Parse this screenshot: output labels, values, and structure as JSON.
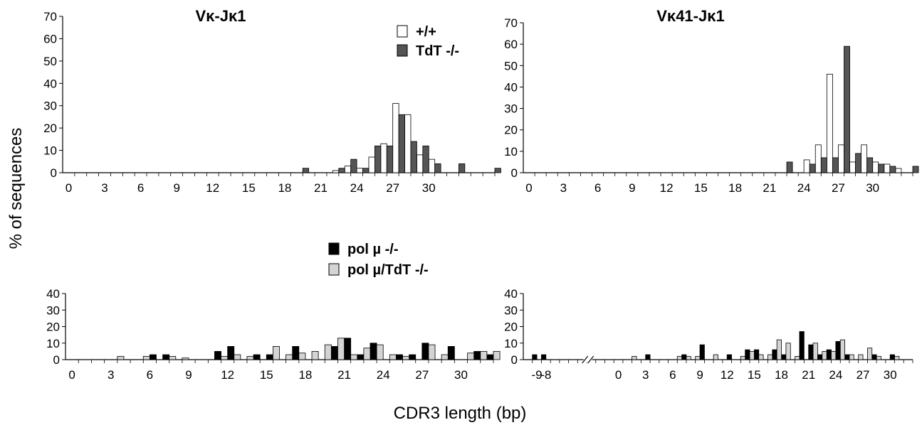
{
  "figure": {
    "ylabel": "% of sequences",
    "xlabel": "CDR3 length (bp)",
    "colors": {
      "wt": "#ffffff",
      "tdt": "#555555",
      "polmu": "#000000",
      "polmu_tdt": "#d4d4d4"
    }
  },
  "legends": {
    "top": [
      {
        "label": "+/+",
        "color": "#ffffff"
      },
      {
        "label": "TdT -/-",
        "color": "#555555"
      }
    ],
    "bottom": [
      {
        "label": "pol µ -/-",
        "color": "#000000"
      },
      {
        "label": "pol µ/TdT -/-",
        "color": "#d4d4d4"
      }
    ]
  },
  "chart_data": [
    {
      "id": "top-left",
      "type": "bar",
      "title": "Vκ-Jκ1",
      "xlabel": "",
      "ylabel": "",
      "xlim": [
        -0.5,
        35.5
      ],
      "ylim": [
        0,
        70
      ],
      "yticks": [
        0,
        10,
        20,
        30,
        40,
        50,
        60,
        70
      ],
      "xticks": [
        {
          "v": 0,
          "label": "0"
        },
        {
          "v": 3,
          "label": "3"
        },
        {
          "v": 6,
          "label": "6"
        },
        {
          "v": 9,
          "label": "9"
        },
        {
          "v": 12,
          "label": "12"
        },
        {
          "v": 15,
          "label": "15"
        },
        {
          "v": 18,
          "label": "18"
        },
        {
          "v": 21,
          "label": "21"
        },
        {
          "v": 24,
          "label": "24"
        },
        {
          "v": 27,
          "label": "27"
        },
        {
          "v": 30,
          "label": "30"
        }
      ],
      "series": [
        {
          "name": "+/+",
          "color": "#ffffff",
          "x": [
            22,
            23,
            24,
            25,
            26,
            27,
            28,
            29,
            30
          ],
          "y": [
            1,
            3,
            2,
            7,
            13,
            31,
            26,
            8,
            6
          ]
        },
        {
          "name": "TdT -/-",
          "color": "#555555",
          "x": [
            19,
            22,
            23,
            24,
            25,
            26,
            27,
            28,
            29,
            30,
            32,
            35
          ],
          "y": [
            2,
            2,
            6,
            2,
            12,
            12,
            26,
            14,
            12,
            4,
            4,
            2
          ]
        }
      ]
    },
    {
      "id": "top-right",
      "type": "bar",
      "title": "Vκ41-Jκ1",
      "xlabel": "",
      "ylabel": "",
      "xlim": [
        -0.5,
        33.5
      ],
      "ylim": [
        0,
        70
      ],
      "yticks": [
        0,
        10,
        20,
        30,
        40,
        50,
        60,
        70
      ],
      "xticks": [
        {
          "v": 0,
          "label": "0"
        },
        {
          "v": 3,
          "label": "3"
        },
        {
          "v": 6,
          "label": "6"
        },
        {
          "v": 9,
          "label": "9"
        },
        {
          "v": 12,
          "label": "12"
        },
        {
          "v": 15,
          "label": "15"
        },
        {
          "v": 18,
          "label": "18"
        },
        {
          "v": 21,
          "label": "21"
        },
        {
          "v": 24,
          "label": "24"
        },
        {
          "v": 27,
          "label": "27"
        },
        {
          "v": 30,
          "label": "30"
        }
      ],
      "series": [
        {
          "name": "+/+",
          "color": "#ffffff",
          "x": [
            24,
            25,
            26,
            27,
            28,
            29,
            30,
            31,
            32
          ],
          "y": [
            6,
            13,
            46,
            13,
            5,
            13,
            5,
            4,
            2
          ]
        },
        {
          "name": "TdT -/-",
          "color": "#555555",
          "x": [
            22,
            24,
            25,
            26,
            27,
            28,
            29,
            30,
            31,
            33
          ],
          "y": [
            5,
            4,
            7,
            7,
            59,
            9,
            7,
            4,
            3,
            3
          ]
        }
      ]
    },
    {
      "id": "bottom-left",
      "type": "bar",
      "title": "",
      "xlabel": "",
      "ylabel": "",
      "xlim": [
        -0.5,
        32.5
      ],
      "ylim": [
        0,
        40
      ],
      "yticks": [
        0,
        10,
        20,
        30,
        40
      ],
      "xticks": [
        {
          "v": 0,
          "label": "0"
        },
        {
          "v": 3,
          "label": "3"
        },
        {
          "v": 6,
          "label": "6"
        },
        {
          "v": 9,
          "label": "9"
        },
        {
          "v": 12,
          "label": "12"
        },
        {
          "v": 15,
          "label": "15"
        },
        {
          "v": 18,
          "label": "18"
        },
        {
          "v": 21,
          "label": "21"
        },
        {
          "v": 24,
          "label": "24"
        },
        {
          "v": 27,
          "label": "27"
        },
        {
          "v": 30,
          "label": "30"
        }
      ],
      "series": [
        {
          "name": "pol µ -/-",
          "color": "#000000",
          "x": [
            6,
            7,
            11,
            12,
            14,
            15,
            17,
            19,
            20,
            21,
            22,
            23,
            25,
            26,
            27,
            29,
            31,
            32
          ],
          "y": [
            3,
            3,
            5,
            8,
            3,
            3,
            8,
            0,
            8,
            13,
            3,
            10,
            3,
            3,
            10,
            8,
            5,
            3
          ]
        },
        {
          "name": "pol µ/TdT -/-",
          "color": "#d4d4d4",
          "x": [
            3,
            5,
            7,
            8,
            11,
            12,
            13,
            15,
            16,
            17,
            18,
            19,
            20,
            21,
            22,
            23,
            24,
            25,
            27,
            28,
            30,
            31,
            32
          ],
          "y": [
            2,
            2,
            2,
            1,
            2,
            3,
            2,
            8,
            3,
            4,
            5,
            9,
            13,
            3,
            7,
            9,
            3,
            2,
            9,
            3,
            4,
            5,
            5
          ]
        }
      ]
    },
    {
      "id": "bottom-right",
      "type": "bar",
      "title": "",
      "xlabel": "",
      "ylabel": "",
      "xlim": [
        -10.5,
        32.5
      ],
      "ylim": [
        0,
        40
      ],
      "yticks": [
        0,
        10,
        20,
        30,
        40
      ],
      "axis_break_between": [
        -8,
        0
      ],
      "xticks": [
        {
          "v": -9,
          "label": "-9"
        },
        {
          "v": -8,
          "label": "-8"
        },
        {
          "v": 0,
          "label": "0"
        },
        {
          "v": 3,
          "label": "3"
        },
        {
          "v": 6,
          "label": "6"
        },
        {
          "v": 9,
          "label": "9"
        },
        {
          "v": 12,
          "label": "12"
        },
        {
          "v": 15,
          "label": "15"
        },
        {
          "v": 18,
          "label": "18"
        },
        {
          "v": 21,
          "label": "21"
        },
        {
          "v": 24,
          "label": "24"
        },
        {
          "v": 27,
          "label": "27"
        },
        {
          "v": 30,
          "label": "30"
        }
      ],
      "series": [
        {
          "name": "pol µ -/-",
          "color": "#000000",
          "x": [
            -9.5,
            -8.5,
            3,
            7,
            9,
            12,
            14,
            15,
            17,
            18,
            20,
            21,
            22,
            23,
            24,
            25,
            28,
            30
          ],
          "y": [
            3,
            3,
            3,
            3,
            9,
            3,
            6,
            6,
            6,
            3,
            17,
            9,
            3,
            6,
            11,
            3,
            3,
            3
          ]
        },
        {
          "name": "pol µ/TdT -/-",
          "color": "#d4d4d4",
          "x": [
            1,
            6,
            7,
            8,
            10,
            13,
            14,
            15,
            16,
            17,
            18,
            19,
            21,
            22,
            23,
            24,
            25,
            26,
            27,
            28,
            30
          ],
          "y": [
            2,
            2,
            2,
            2,
            3,
            2,
            5,
            3,
            3,
            12,
            10,
            2,
            10,
            5,
            5,
            12,
            3,
            3,
            7,
            2,
            2
          ]
        }
      ]
    }
  ]
}
